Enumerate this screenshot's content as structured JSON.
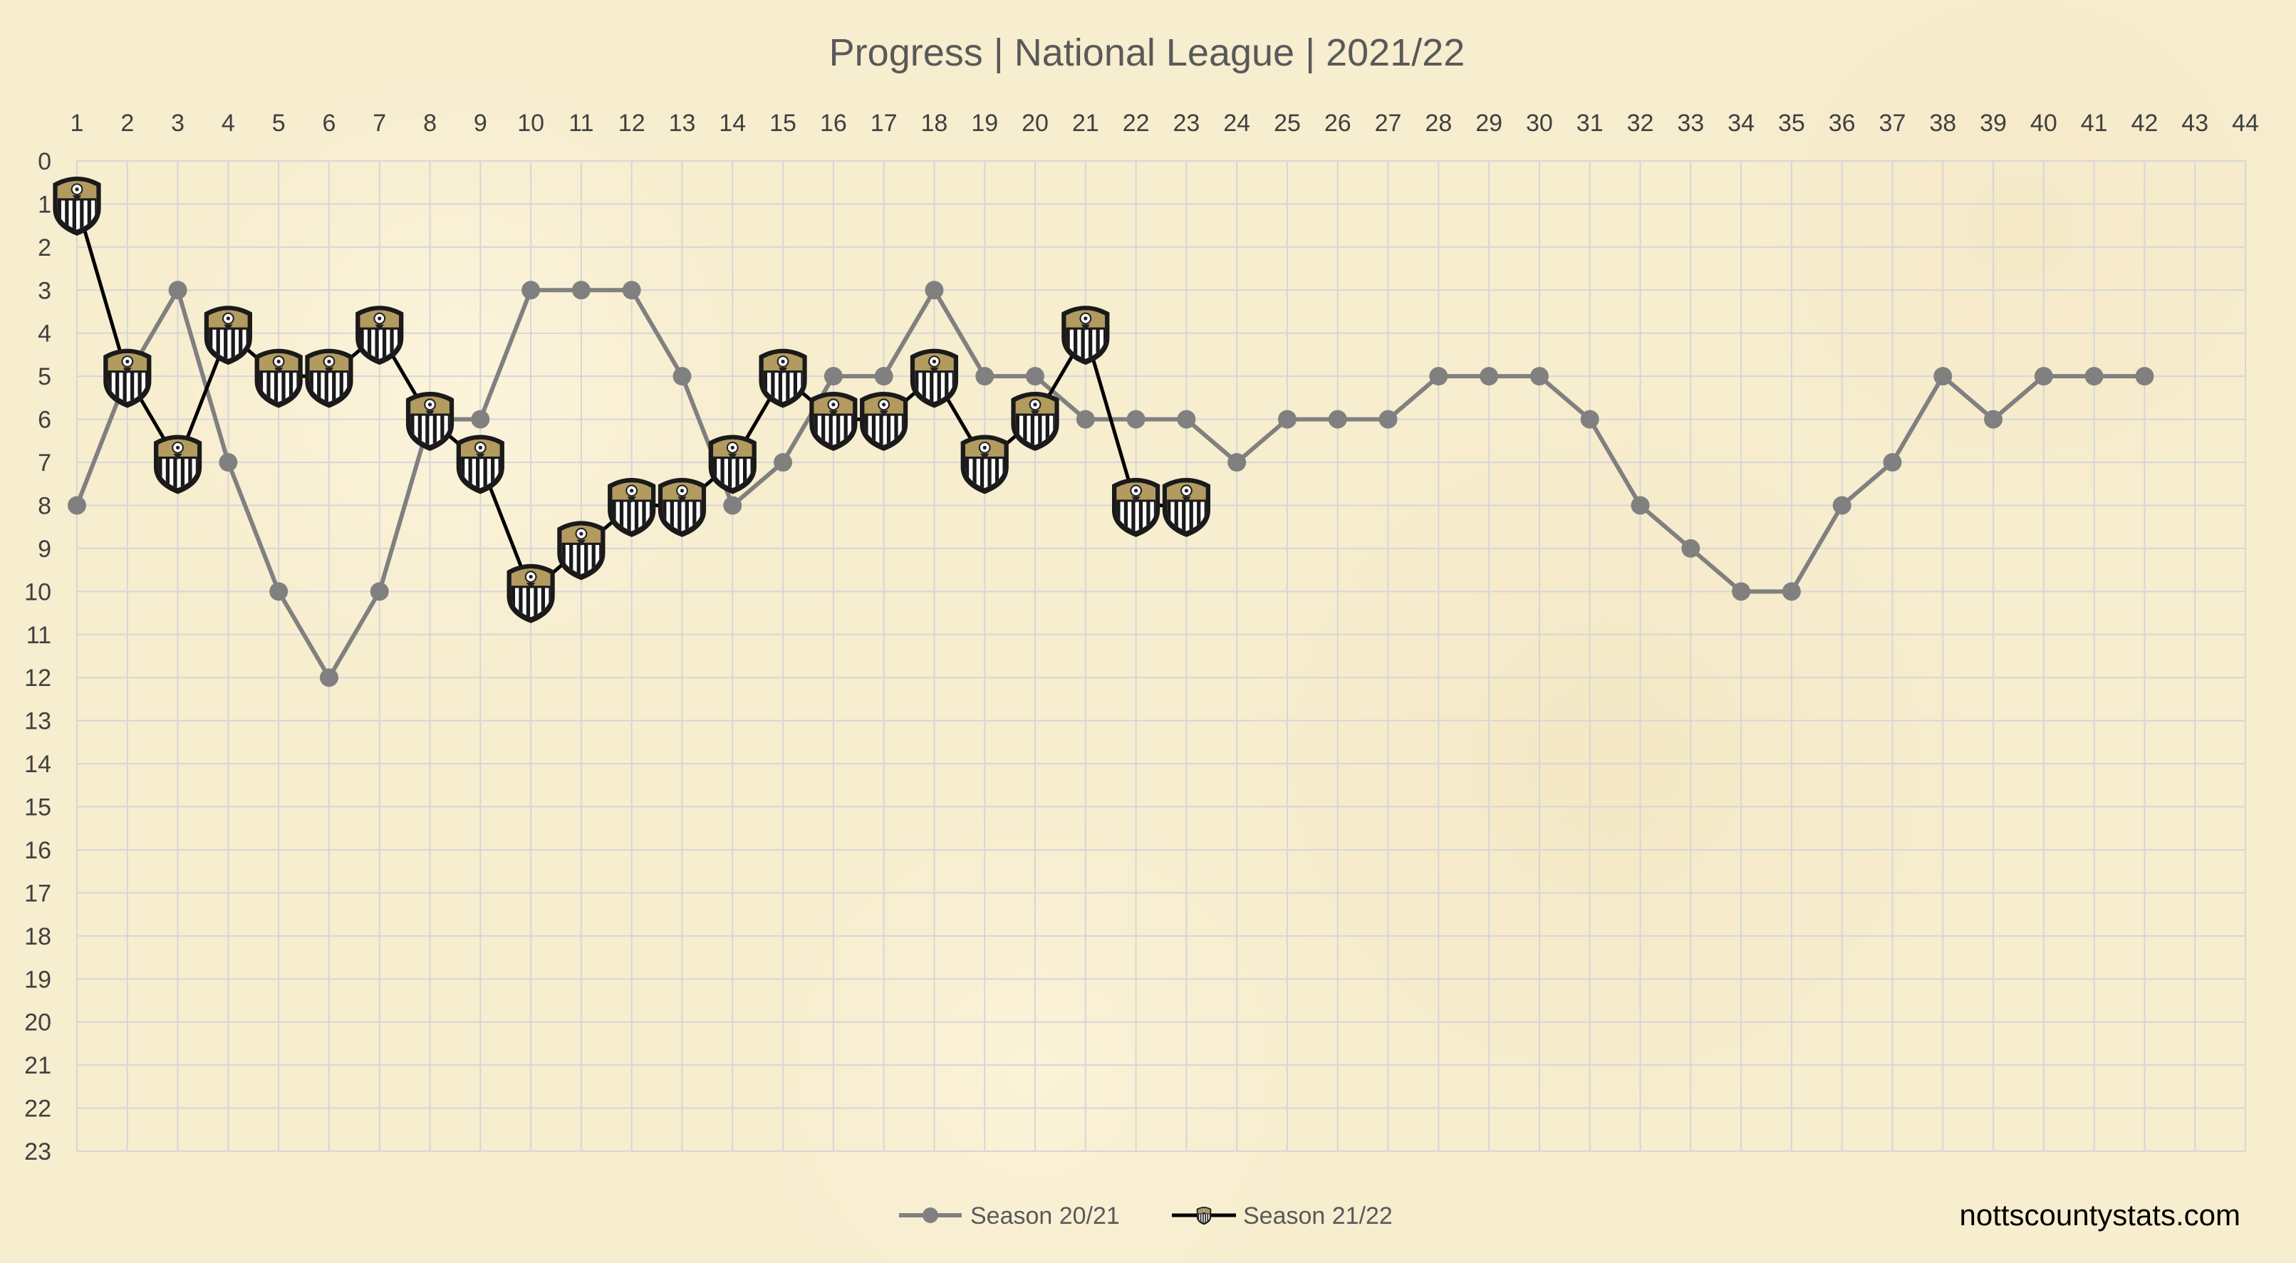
{
  "chart_data": {
    "type": "line",
    "title": "Progress | National League | 2021/22",
    "x_ticks": [
      "1",
      "2",
      "3",
      "4",
      "5",
      "6",
      "7",
      "8",
      "9",
      "10",
      "11",
      "12",
      "13",
      "14",
      "15",
      "16",
      "17",
      "18",
      "19",
      "20",
      "21",
      "22",
      "23",
      "24",
      "25",
      "26",
      "27",
      "28",
      "29",
      "30",
      "31",
      "32",
      "33",
      "34",
      "35",
      "36",
      "37",
      "38",
      "39",
      "40",
      "41",
      "42",
      "43",
      "44"
    ],
    "y_ticks": [
      "0",
      "1",
      "2",
      "3",
      "4",
      "5",
      "6",
      "7",
      "8",
      "9",
      "10",
      "11",
      "12",
      "13",
      "14",
      "15",
      "16",
      "17",
      "18",
      "19",
      "20",
      "21",
      "22",
      "23"
    ],
    "xlim": [
      1,
      44
    ],
    "ylim": [
      0,
      23
    ],
    "y_inverted": true,
    "x_axis_position": "top",
    "grid": true,
    "legend_position": "bottom-center",
    "series": [
      {
        "name": "Season 20/21",
        "color": "#808080",
        "marker": "circle",
        "x": [
          1,
          2,
          3,
          4,
          5,
          6,
          7,
          8,
          9,
          10,
          11,
          12,
          13,
          14,
          15,
          16,
          17,
          18,
          19,
          20,
          21,
          22,
          23,
          24,
          25,
          26,
          27,
          28,
          29,
          30,
          31,
          32,
          33,
          34,
          35,
          36,
          37,
          38,
          39,
          40,
          41,
          42
        ],
        "y": [
          8,
          5,
          3,
          7,
          10,
          12,
          10,
          6,
          6,
          3,
          3,
          3,
          5,
          8,
          7,
          5,
          5,
          3,
          5,
          5,
          6,
          6,
          6,
          7,
          6,
          6,
          6,
          5,
          5,
          5,
          6,
          8,
          9,
          10,
          10,
          8,
          7,
          5,
          6,
          5,
          5,
          5
        ]
      },
      {
        "name": "Season 21/22",
        "color": "#000000",
        "marker": "club-crest-icon",
        "x": [
          1,
          2,
          3,
          4,
          5,
          6,
          7,
          8,
          9,
          10,
          11,
          12,
          13,
          14,
          15,
          16,
          17,
          18,
          19,
          20,
          21,
          22,
          23
        ],
        "y": [
          1,
          5,
          7,
          4,
          5,
          5,
          4,
          6,
          7,
          10,
          9,
          8,
          8,
          7,
          5,
          6,
          6,
          5,
          7,
          6,
          4,
          8,
          8
        ]
      }
    ],
    "credit": "nottscountystats.com"
  }
}
